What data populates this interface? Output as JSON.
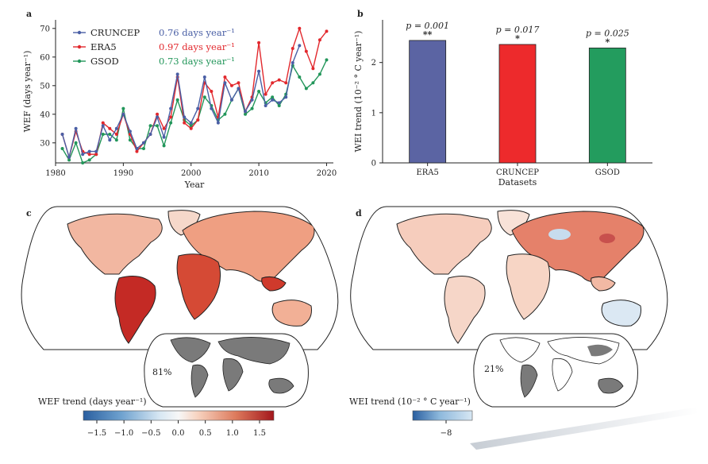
{
  "panels": {
    "a": "a",
    "b": "b",
    "c": "c",
    "d": "d"
  },
  "colors": {
    "cruncep": "#4a5fa5",
    "era5": "#e2282d",
    "gsod": "#22965a",
    "bar_era5": "#5b64a3",
    "bar_cruncep": "#ed2a2c",
    "bar_gsod": "#239c5e",
    "land_gray": "#7a7a7a"
  },
  "chart_data": [
    {
      "id": "a",
      "type": "line",
      "xlabel": "Year",
      "ylabel": "WEF (days year⁻¹)",
      "xlim": [
        1980,
        2021
      ],
      "ylim": [
        23,
        73
      ],
      "xticks": [
        1980,
        1990,
        2000,
        2010,
        2020
      ],
      "yticks": [
        30,
        40,
        50,
        60,
        70
      ],
      "legend_position": "top-left",
      "x": [
        1981,
        1982,
        1983,
        1984,
        1985,
        1986,
        1987,
        1988,
        1989,
        1990,
        1991,
        1992,
        1993,
        1994,
        1995,
        1996,
        1997,
        1998,
        1999,
        2000,
        2001,
        2002,
        2003,
        2004,
        2005,
        2006,
        2007,
        2008,
        2009,
        2010,
        2011,
        2012,
        2013,
        2014,
        2015,
        2016,
        2017,
        2018,
        2019,
        2020
      ],
      "series": [
        {
          "name": "CRUNCEP",
          "trend_label": "0.76 days year⁻¹",
          "color": "#4a5fa5",
          "values": [
            33,
            25,
            35,
            26,
            27,
            27,
            36,
            31,
            35,
            40,
            34,
            28,
            30,
            33,
            39,
            32,
            42,
            54,
            39,
            37,
            42,
            53,
            42,
            37,
            51,
            45,
            49,
            41,
            45,
            55,
            43,
            45,
            44,
            46,
            58,
            64,
            null,
            null,
            null,
            null
          ]
        },
        {
          "name": "ERA5",
          "trend_label": "0.97 days year⁻¹",
          "color": "#e2282d",
          "values": [
            33,
            25,
            34,
            27,
            26,
            26,
            37,
            35,
            33,
            40,
            33,
            27,
            30,
            33,
            40,
            35,
            39,
            53,
            37,
            35,
            38,
            51,
            48,
            39,
            53,
            50,
            51,
            41,
            46,
            65,
            47,
            51,
            52,
            51,
            63,
            70,
            62,
            56,
            66,
            69
          ]
        },
        {
          "name": "GSOD",
          "trend_label": "0.73 days year⁻¹",
          "color": "#22965a",
          "values": [
            28,
            24,
            30,
            23,
            24,
            26,
            33,
            33,
            31,
            42,
            31,
            28,
            28,
            36,
            36,
            29,
            37,
            45,
            38,
            36,
            38,
            46,
            43,
            38,
            40,
            45,
            49,
            40,
            42,
            48,
            44,
            46,
            43,
            47,
            57,
            53,
            49,
            51,
            54,
            59
          ]
        }
      ]
    },
    {
      "id": "b",
      "type": "bar",
      "xlabel": "Datasets",
      "ylabel": "WEI trend (10⁻² ° C year⁻¹)",
      "ylim": [
        0,
        2.85
      ],
      "yticks": [
        0,
        1,
        2
      ],
      "categories": [
        "ERA5",
        "CRUNCEP",
        "GSOD"
      ],
      "values": [
        2.44,
        2.36,
        2.29
      ],
      "pvalues": [
        "p = 0.001",
        "p = 0.017",
        "p = 0.025"
      ],
      "significance": [
        "**",
        "*",
        "*"
      ]
    }
  ],
  "map_c": {
    "inset_percent": "81%",
    "colorbar_label": "WEF trend (days year⁻¹)",
    "colorbar_ticks": [
      "−1.5",
      "−1.0",
      "−0.5",
      "0.0",
      "0.5",
      "1.0",
      "1.5"
    ]
  },
  "map_d": {
    "inset_percent": "21%",
    "colorbar_label": "WEI trend (10⁻² ° C year⁻¹)",
    "colorbar_ticks": [
      "−8"
    ]
  }
}
